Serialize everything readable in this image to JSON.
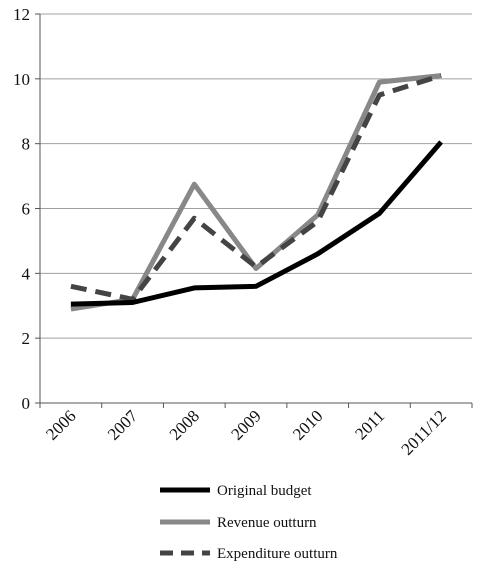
{
  "chart_data": {
    "type": "line",
    "categories": [
      "2006",
      "2007",
      "2008",
      "2009",
      "2010",
      "2011",
      "2011/12"
    ],
    "ylim": [
      0,
      12
    ],
    "yticks": [
      0,
      2,
      4,
      6,
      8,
      10,
      12
    ],
    "grid": true,
    "legend_position": "bottom",
    "series": [
      {
        "name": "Original budget",
        "values": [
          3.05,
          3.1,
          3.55,
          3.6,
          4.6,
          5.85,
          8.05
        ],
        "color": "#000000",
        "style": "solid"
      },
      {
        "name": "Revenue outturn",
        "values": [
          2.9,
          3.2,
          6.75,
          4.15,
          5.8,
          9.9,
          10.1
        ],
        "color": "#888888",
        "style": "solid"
      },
      {
        "name": "Expenditure outturn",
        "values": [
          3.6,
          3.2,
          5.7,
          4.2,
          5.6,
          9.5,
          10.1
        ],
        "color": "#444444",
        "style": "dashed"
      }
    ]
  }
}
